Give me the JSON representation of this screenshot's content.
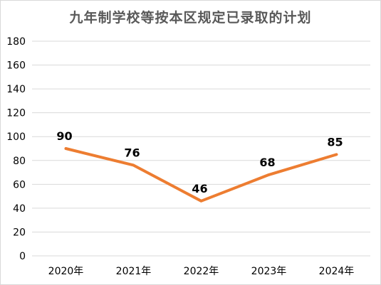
{
  "chart_data": {
    "type": "line",
    "title": "九年制学校等按本区规定已录取的计划",
    "categories": [
      "2020年",
      "2021年",
      "2022年",
      "2023年",
      "2024年"
    ],
    "series": [
      {
        "values": [
          90,
          76,
          46,
          68,
          85
        ],
        "color": "#ED7D31"
      }
    ],
    "data_labels": [
      "90",
      "76",
      "46",
      "68",
      "85"
    ],
    "ylim": [
      0,
      180
    ],
    "yticks": [
      "0",
      "20",
      "40",
      "60",
      "80",
      "100",
      "120",
      "140",
      "160",
      "180"
    ],
    "grid": true,
    "xlabel": "",
    "ylabel": "",
    "legend": "none"
  },
  "colors": {
    "line": "#ED7D31",
    "grid": "#d9d9d9",
    "axis_text": "#000000",
    "title": "#595959"
  }
}
